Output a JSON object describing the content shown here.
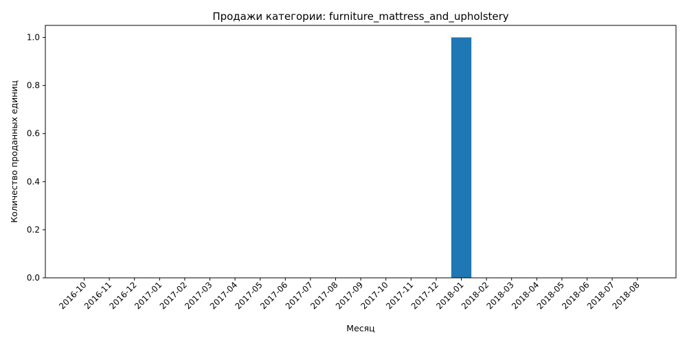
{
  "chart_data": {
    "type": "bar",
    "title": "Продажи категории: furniture_mattress_and_upholstery",
    "xlabel": "Месяц",
    "ylabel": "Количество проданных единиц",
    "categories": [
      "2016-10",
      "2016-11",
      "2016-12",
      "2017-01",
      "2017-02",
      "2017-03",
      "2017-04",
      "2017-05",
      "2017-06",
      "2017-07",
      "2017-08",
      "2017-09",
      "2017-10",
      "2017-11",
      "2017-12",
      "2018-01",
      "2018-02",
      "2018-03",
      "2018-04",
      "2018-05",
      "2018-06",
      "2018-07",
      "2018-08"
    ],
    "values": [
      0,
      0,
      0,
      0,
      0,
      0,
      0,
      0,
      0,
      0,
      0,
      0,
      0,
      0,
      0,
      1,
      0,
      0,
      0,
      0,
      0,
      0,
      0
    ],
    "ylim": [
      0,
      1.05
    ],
    "yticks": [
      "0.0",
      "0.2",
      "0.4",
      "0.6",
      "0.8",
      "1.0"
    ],
    "grid": false,
    "legend": "none",
    "bar_color": "#1f77b4"
  }
}
